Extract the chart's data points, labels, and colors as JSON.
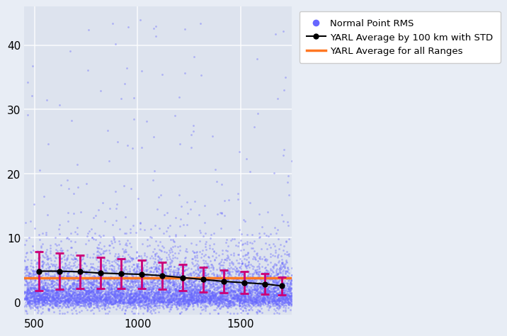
{
  "title": "",
  "xlabel": "",
  "ylabel": "",
  "xlim": [
    450,
    1750
  ],
  "ylim": [
    -2,
    46
  ],
  "bg_color": "#dde3ee",
  "fig_bg_color": "#e8edf5",
  "scatter_color": "#6666ff",
  "scatter_alpha": 0.4,
  "scatter_size": 4,
  "avg_line_color": "#ff7722",
  "avg_line_value": 3.8,
  "bin_centers": [
    520,
    620,
    720,
    820,
    920,
    1020,
    1120,
    1220,
    1320,
    1420,
    1520,
    1620,
    1700
  ],
  "bin_avgs": [
    4.8,
    4.8,
    4.7,
    4.5,
    4.4,
    4.3,
    4.1,
    3.8,
    3.5,
    3.2,
    3.0,
    2.8,
    2.5
  ],
  "bin_stds": [
    3.0,
    2.8,
    2.6,
    2.4,
    2.3,
    2.2,
    2.1,
    2.0,
    1.9,
    1.8,
    1.7,
    1.6,
    1.4
  ],
  "errorbar_color": "#cc0077",
  "dot_color": "#000000",
  "line_color": "#000000",
  "yticks": [
    0,
    10,
    20,
    30,
    40
  ],
  "xticks": [
    500,
    1000,
    1500
  ],
  "legend_scatter_label": "Normal Point RMS",
  "legend_avg_label": "YARL Average by 100 km with STD",
  "legend_allrng_label": "YARL Average for all Ranges",
  "seed": 42,
  "n_points": 8000,
  "x_min": 450,
  "x_max": 1750
}
